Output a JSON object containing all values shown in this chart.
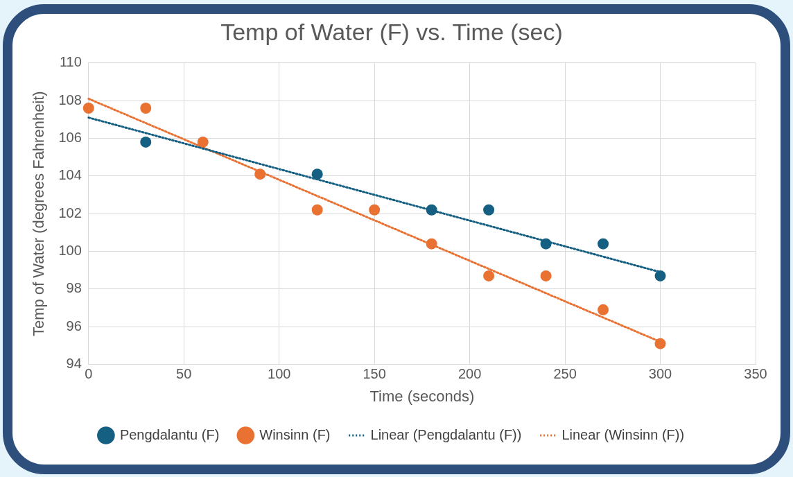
{
  "chart_data": {
    "type": "scatter",
    "title": "Temp of Water (F) vs. Time (sec)",
    "xlabel": "Time (seconds)",
    "ylabel": "Temp of Water (degrees Fahrenheit)",
    "x": [
      0,
      30,
      60,
      90,
      120,
      150,
      180,
      210,
      240,
      270,
      300
    ],
    "series": [
      {
        "name": "Pengdalantu (F)",
        "color": "#156082",
        "values": [
          null,
          105.8,
          null,
          null,
          104.1,
          null,
          102.2,
          102.2,
          100.4,
          100.4,
          98.7
        ]
      },
      {
        "name": "Winsinn (F)",
        "color": "#e97132",
        "values": [
          107.6,
          107.6,
          105.8,
          104.1,
          102.2,
          102.2,
          100.4,
          98.7,
          98.7,
          96.9,
          95.1
        ]
      },
      {
        "name": "Linear (Pengdalantu (F))",
        "type": "line",
        "color": "#156082",
        "values": [
          107.1,
          null,
          null,
          null,
          null,
          null,
          null,
          null,
          null,
          null,
          98.9
        ],
        "marker": "none",
        "line_style": "dotted"
      },
      {
        "name": "Linear (Winsinn (F))",
        "type": "line",
        "color": "#e97132",
        "values": [
          108.1,
          null,
          null,
          null,
          null,
          null,
          null,
          null,
          null,
          null,
          95.2
        ],
        "marker": "none",
        "line_style": "dotted"
      }
    ],
    "xlim": [
      0,
      350
    ],
    "xticks": [
      0,
      50,
      100,
      150,
      200,
      250,
      300,
      350
    ],
    "ylim": [
      94,
      110
    ],
    "yticks": [
      94,
      96,
      98,
      100,
      102,
      104,
      106,
      108,
      110
    ],
    "grid": true,
    "legend": "bottom",
    "marker": "circle"
  }
}
